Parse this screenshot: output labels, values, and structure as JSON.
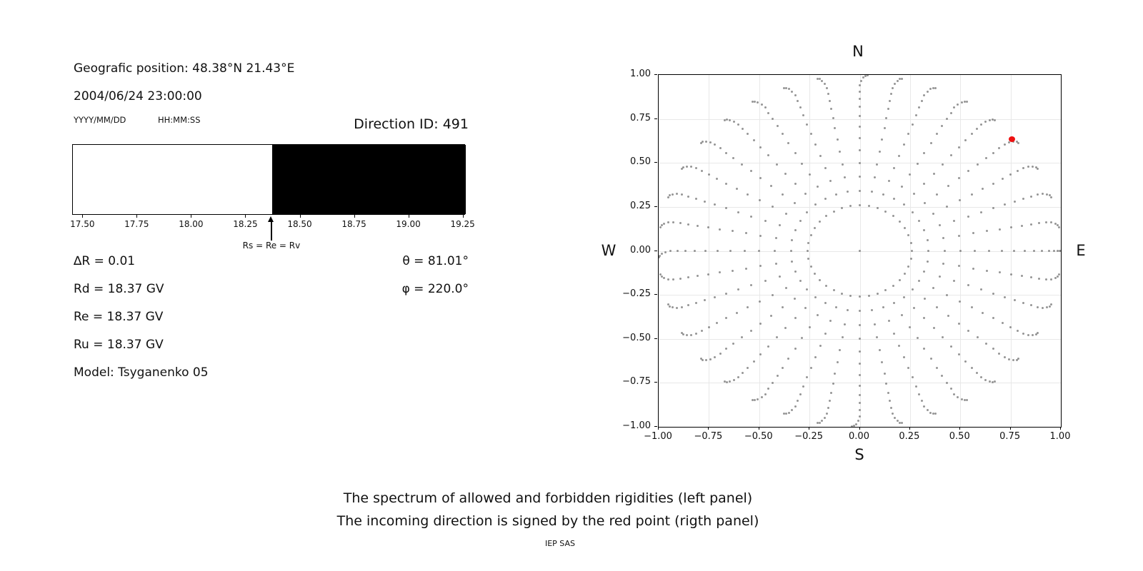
{
  "left_panel": {
    "geo_position": "Geografic position: 48.38°N 21.43°E",
    "datetime": "2004/06/24 23:00:00",
    "date_format_label": "YYYY/MM/DD",
    "time_format_label": "HH:MM:SS",
    "direction_id": "Direction ID: 491",
    "cutoff_annotation": "Rs = Re = Rv",
    "params_left": [
      "∆R = 0.01",
      "Rd = 18.37 GV",
      "Re = 18.37 GV",
      "Ru = 18.37 GV",
      "Model: Tsyganenko 05"
    ],
    "params_right": [
      "θ = 81.01°",
      "φ = 220.0°"
    ]
  },
  "caption": {
    "line1": "The spectrum of allowed and forbidden rigidities (left panel)",
    "line2": "The incoming direction is signed by the red point (rigth panel)",
    "credit": "IEP SAS"
  },
  "chart_data": [
    {
      "type": "area",
      "panel": "left-spectrum",
      "x_range": [
        17.453,
        19.261
      ],
      "x_ticks": [
        "17.50",
        "17.75",
        "18.00",
        "18.25",
        "18.50",
        "18.75",
        "19.00",
        "19.25"
      ],
      "cutoff": 18.37,
      "cutoff_label": "Rs = Re = Rv",
      "regions": [
        {
          "name": "allowed",
          "from": 17.453,
          "to": 18.37,
          "color": "#ffffff"
        },
        {
          "name": "forbidden",
          "from": 18.37,
          "to": 19.261,
          "color": "#000000"
        }
      ],
      "values": {
        "delta_R": 0.01,
        "Rd_GV": 18.37,
        "Re_GV": 18.37,
        "Ru_GV": 18.37,
        "model": "Tsyganenko 05"
      }
    },
    {
      "type": "scatter",
      "panel": "right-direction-map",
      "xlim": [
        -1,
        1
      ],
      "ylim": [
        -1,
        1
      ],
      "x_ticks": [
        "−1.00",
        "−0.75",
        "−0.50",
        "−0.25",
        "0.00",
        "0.25",
        "0.50",
        "0.75",
        "1.00"
      ],
      "y_ticks": [
        "1.00",
        "0.75",
        "0.50",
        "0.25",
        "0.00",
        "−0.25",
        "−0.50",
        "−0.75",
        "−1.00"
      ],
      "compass": {
        "north": "N",
        "south": "S",
        "east": "E",
        "west": "W"
      },
      "grid_dots": {
        "description": "direction grid: dot at r=sin(zenith), azimuth rays every 10 deg, outer tails curl slightly toward E-W axis",
        "azimuth_start_deg": 0,
        "azimuth_step_deg": 10,
        "zenith_min_deg": 15,
        "zenith_max_deg": 90,
        "zenith_step_deg": 5,
        "center_dot": true,
        "tail_curl_start_deg": 72,
        "tail_curl_max_deg": 2.2
      },
      "red_point": {
        "x": 0.757,
        "y": 0.635,
        "theta_deg": 81.01,
        "phi_deg": 220.0
      },
      "colors": {
        "dot": "rgba(108,108,108,0.72)",
        "red": "#ee1111",
        "grid": "#e8e8e8"
      }
    }
  ]
}
